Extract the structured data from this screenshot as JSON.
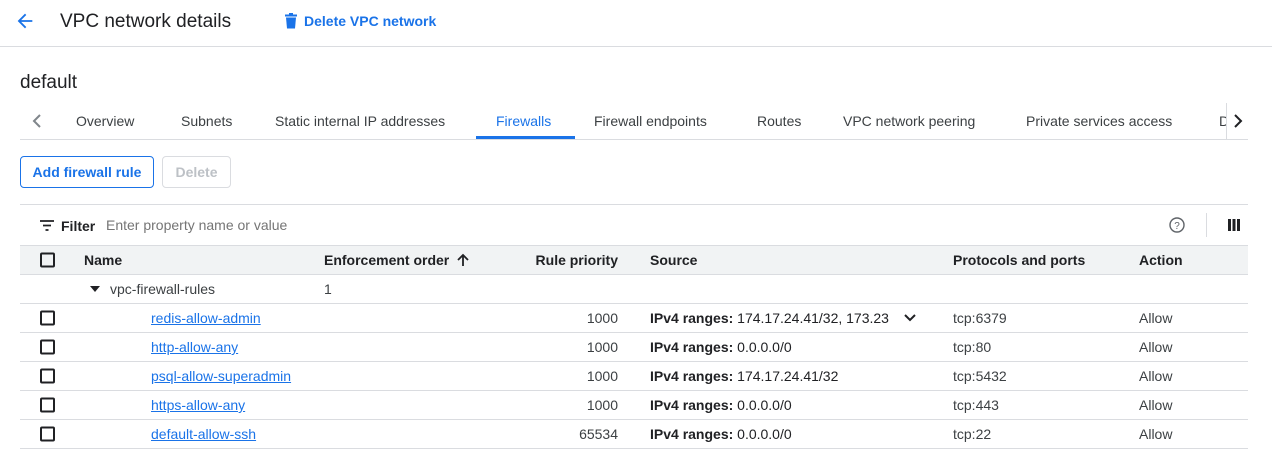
{
  "header": {
    "title": "VPC network details",
    "delete_label": "Delete VPC network"
  },
  "network_name": "default",
  "tabs": [
    "Overview",
    "Subnets",
    "Static internal IP addresses",
    "Firewalls",
    "Firewall endpoints",
    "Routes",
    "VPC network peering",
    "Private services access",
    "D"
  ],
  "active_tab": "Firewalls",
  "toolbar": {
    "add_label": "Add firewall rule",
    "delete_label": "Delete"
  },
  "filter": {
    "label": "Filter",
    "placeholder": "Enter property name or value"
  },
  "columns": {
    "name": "Name",
    "enforcement": "Enforcement order",
    "priority": "Rule priority",
    "source": "Source",
    "protocols": "Protocols and ports",
    "action": "Action"
  },
  "group": {
    "name": "vpc-firewall-rules",
    "order": "1"
  },
  "rows": [
    {
      "name": "redis-allow-admin",
      "priority": "1000",
      "source_label": "IPv4 ranges:",
      "source": "174.17.24.41/32, 173.23",
      "protocols": "tcp:6379",
      "action": "Allow"
    },
    {
      "name": "http-allow-any",
      "priority": "1000",
      "source_label": "IPv4 ranges:",
      "source": "0.0.0.0/0",
      "protocols": "tcp:80",
      "action": "Allow"
    },
    {
      "name": "psql-allow-superadmin",
      "priority": "1000",
      "source_label": "IPv4 ranges:",
      "source": "174.17.24.41/32",
      "protocols": "tcp:5432",
      "action": "Allow"
    },
    {
      "name": "https-allow-any",
      "priority": "1000",
      "source_label": "IPv4 ranges:",
      "source": "0.0.0.0/0",
      "protocols": "tcp:443",
      "action": "Allow"
    },
    {
      "name": "default-allow-ssh",
      "priority": "65534",
      "source_label": "IPv4 ranges:",
      "source": "0.0.0.0/0",
      "protocols": "tcp:22",
      "action": "Allow"
    }
  ],
  "colors": {
    "accent": "#1a73e8",
    "border": "#dadce0",
    "header_bg": "#f1f3f4"
  }
}
